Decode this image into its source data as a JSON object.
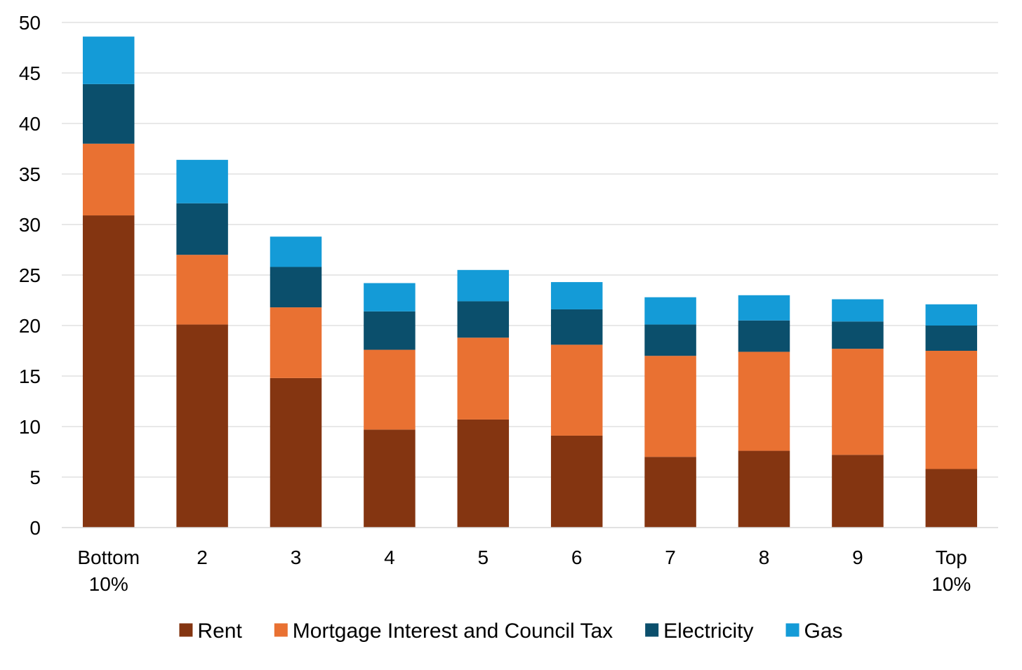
{
  "chart_data": {
    "type": "bar",
    "stacked": true,
    "categories": [
      [
        "Bottom",
        "10%"
      ],
      [
        "2"
      ],
      [
        "3"
      ],
      [
        "4"
      ],
      [
        "5"
      ],
      [
        "6"
      ],
      [
        "7"
      ],
      [
        "8"
      ],
      [
        "9"
      ],
      [
        "Top",
        "10%"
      ]
    ],
    "series": [
      {
        "name": "Rent",
        "color": "#843511",
        "values": [
          30.9,
          20.1,
          14.8,
          9.7,
          10.7,
          9.1,
          7.0,
          7.6,
          7.2,
          5.8
        ]
      },
      {
        "name": "Mortgage Interest and Council Tax",
        "color": "#E97132",
        "values": [
          7.1,
          6.9,
          7.0,
          7.9,
          8.1,
          9.0,
          10.0,
          9.8,
          10.5,
          11.7
        ]
      },
      {
        "name": "Electricity",
        "color": "#0B4F6C",
        "values": [
          5.9,
          5.1,
          4.0,
          3.8,
          3.6,
          3.5,
          3.1,
          3.1,
          2.7,
          2.5
        ]
      },
      {
        "name": "Gas",
        "color": "#149BD7",
        "values": [
          4.7,
          4.3,
          3.0,
          2.8,
          3.1,
          2.7,
          2.7,
          2.5,
          2.2,
          2.1
        ]
      }
    ],
    "ylim": [
      0,
      50
    ],
    "yticks": [
      0,
      5,
      10,
      15,
      20,
      25,
      30,
      35,
      40,
      45,
      50
    ],
    "grid": true,
    "legend_position": "bottom"
  }
}
